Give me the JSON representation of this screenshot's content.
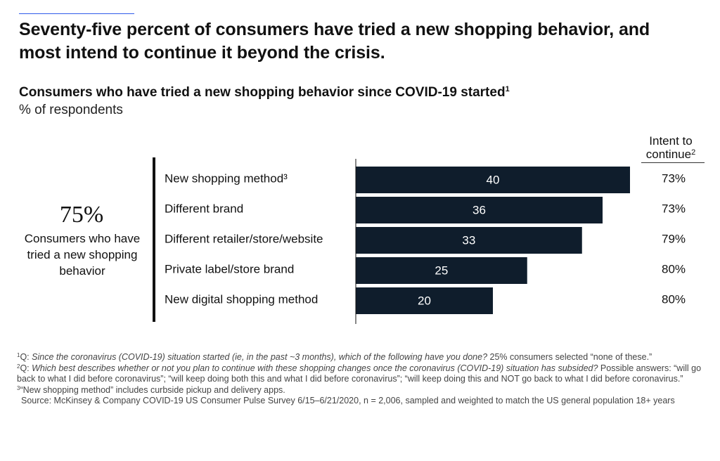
{
  "header": {
    "title": "Seventy-five percent of consumers have tried a new shopping behavior, and most intend to continue it beyond the crisis.",
    "subtitle": "Consumers who have tried a new shopping behavior since COVID-19 started",
    "subtitle_note_mark": "1",
    "unit": "% of respondents"
  },
  "callout": {
    "value": "75%",
    "description": "Consumers who have tried a new shopping behavior"
  },
  "intent_column": {
    "header": "Intent to continue",
    "header_note_mark": "2"
  },
  "chart_data": {
    "type": "bar",
    "orientation": "horizontal",
    "categories": [
      "New shopping method³",
      "Different brand",
      "Different retailer/store/website",
      "Private label/store brand",
      "New digital shopping method"
    ],
    "values": [
      40,
      36,
      33,
      25,
      20
    ],
    "intent_to_continue": [
      "73%",
      "73%",
      "79%",
      "80%",
      "80%"
    ],
    "value_format": "integer",
    "bar_color": "#0f1d2c",
    "value_label_color": "#ffffff",
    "xlim": [
      0,
      40
    ],
    "grid": false,
    "legend": "none"
  },
  "footnotes": {
    "fn1": {
      "mark": "1",
      "prefix": "Q: ",
      "question": "Since the coronavirus (COVID-19) situation started (ie, in the past ~3 months), which of the following have you done?",
      "rest": " 25% consumers selected “none of these.”"
    },
    "fn2": {
      "mark": "2",
      "prefix": "Q: ",
      "question": "Which best describes whether or not you plan to continue with these shopping changes once the coronavirus (COVID-19) situation has subsided?",
      "rest": " Possible answers: “will go back to what I did before coronavirus”; “will keep doing both this and what I did before coronavirus”; “will keep doing this and NOT go back to what I did before coronavirus.”"
    },
    "fn3": {
      "mark": "3",
      "text": "“New shopping method” includes curbside pickup and delivery apps."
    },
    "source": "Source: McKinsey & Company COVID-19 US Consumer Pulse Survey 6/15–6/21/2020, n = 2,006, sampled and weighted to match the US general population 18+ years"
  },
  "colors": {
    "accent": "#2f5bea",
    "bar": "#0f1d2c",
    "text": "#111111"
  }
}
